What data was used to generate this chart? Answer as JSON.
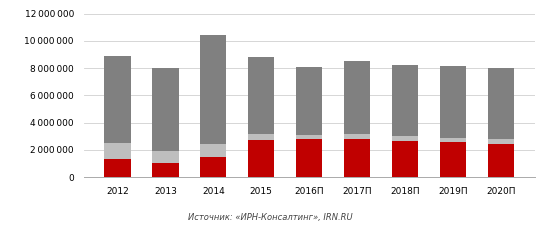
{
  "categories": [
    "2012",
    "2013",
    "2014",
    "2015",
    "2016П",
    "2017П",
    "2018П",
    "2019П",
    "2020П"
  ],
  "moskva": [
    1300000,
    1000000,
    1500000,
    2700000,
    2800000,
    2800000,
    2650000,
    2600000,
    2450000
  ],
  "novaya_moskva": [
    1200000,
    900000,
    950000,
    450000,
    300000,
    350000,
    400000,
    300000,
    350000
  ],
  "moskovskaya_obl": [
    6400000,
    6100000,
    7950000,
    5700000,
    5000000,
    5400000,
    5200000,
    5250000,
    5200000
  ],
  "color_moskva": "#c00000",
  "color_novaya_moskva": "#bebebe",
  "color_moskovskaya_obl": "#808080",
  "ylim": [
    0,
    12000000
  ],
  "yticks": [
    0,
    2000000,
    4000000,
    6000000,
    8000000,
    10000000,
    12000000
  ],
  "source_text": "Источник: «ИРН-Консалтинг», IRN.RU",
  "bar_width": 0.55,
  "background_color": "#ffffff",
  "grid_color": "#d0d0d0"
}
